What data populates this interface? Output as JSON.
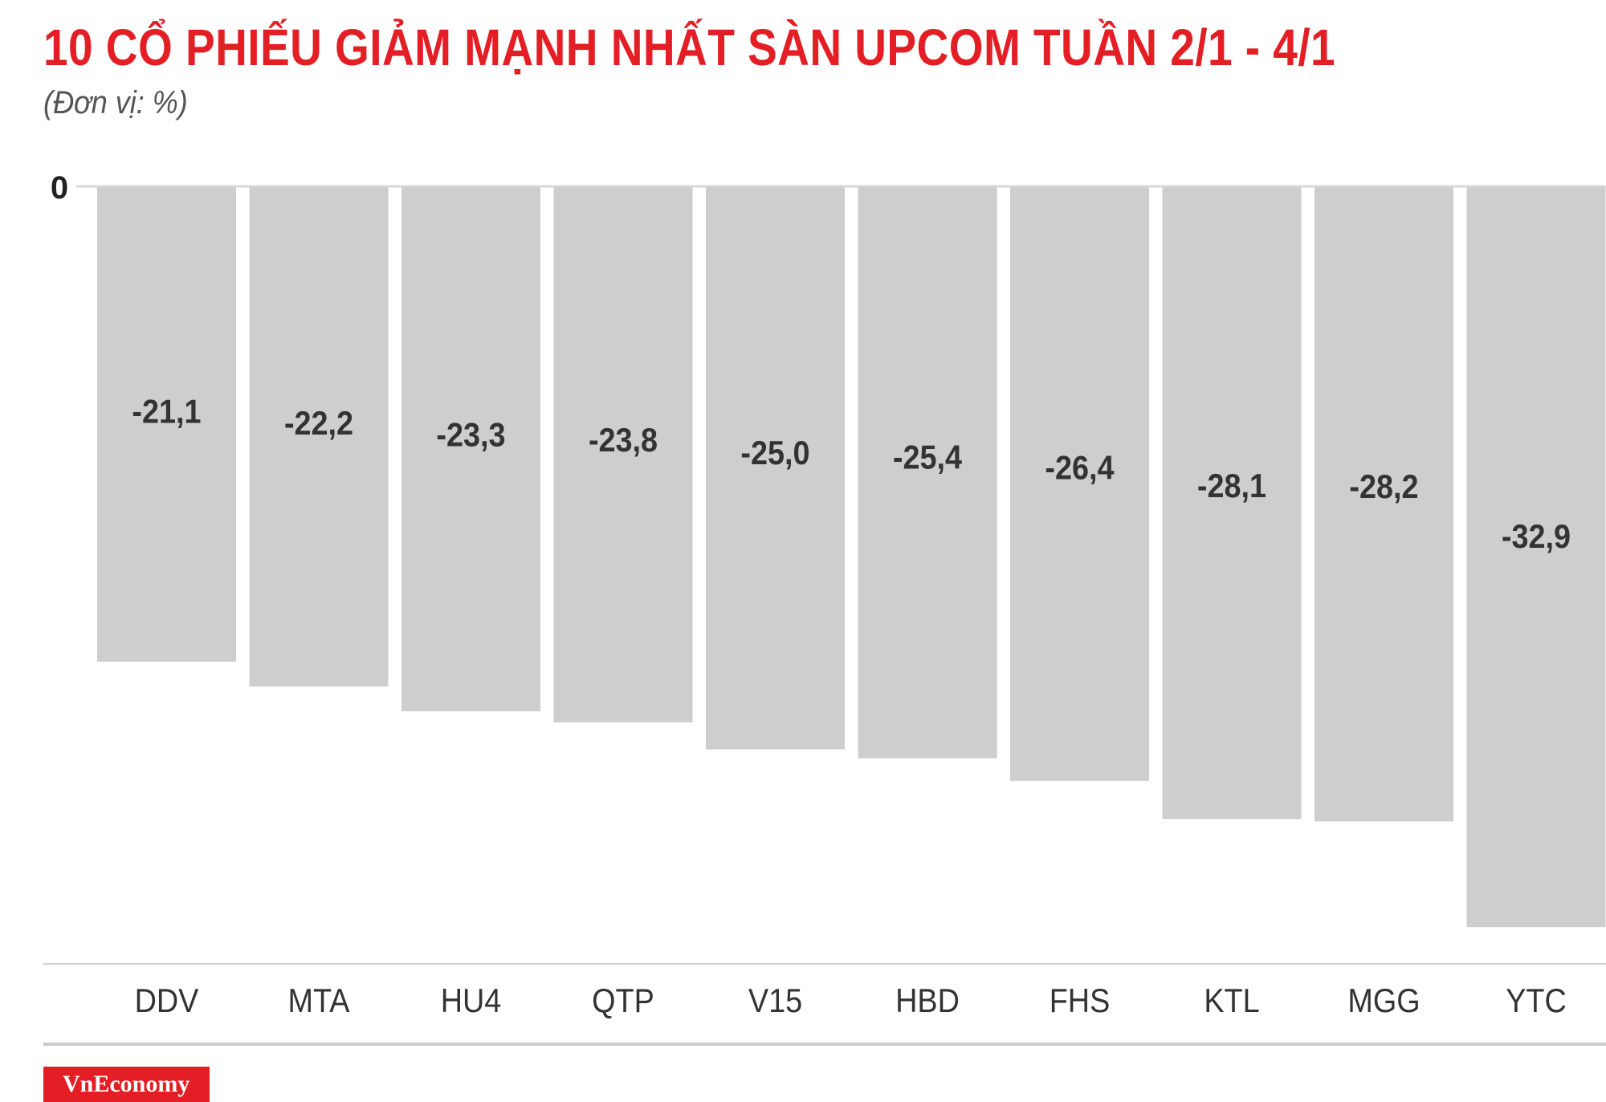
{
  "title": "10 CỔ PHIẾU GIẢM MẠNH NHẤT SÀN UPCOM TUẦN 2/1 - 4/1",
  "subtitle": "(Đơn vị: %)",
  "logo": "VnEconomy",
  "colors": {
    "title": "#e31e24",
    "bar": "#cfcecf",
    "label": "#333333",
    "axis": "#cccccc",
    "logo_bg": "#e31e24"
  },
  "chart_data": {
    "type": "bar",
    "orientation": "vertical",
    "title": "10 CỔ PHIẾU GIẢM MẠNH NHẤT SÀN UPCOM TUẦN 2/1 - 4/1",
    "unit": "%",
    "categories": [
      "DDV",
      "MTA",
      "HU4",
      "QTP",
      "V15",
      "HBD",
      "FHS",
      "KTL",
      "MGG",
      "YTC"
    ],
    "values": [
      -21.1,
      -22.2,
      -23.3,
      -23.8,
      -25.0,
      -25.4,
      -26.4,
      -28.1,
      -28.2,
      -32.9
    ],
    "value_labels": [
      "-21,1",
      "-22,2",
      "-23,3",
      "-23,8",
      "-25,0",
      "-25,4",
      "-26,4",
      "-28,1",
      "-28,2",
      "-32,9"
    ],
    "y_tick_labels": [
      "0"
    ],
    "ylim": [
      -33,
      0
    ],
    "grid": false,
    "legend": "none"
  }
}
